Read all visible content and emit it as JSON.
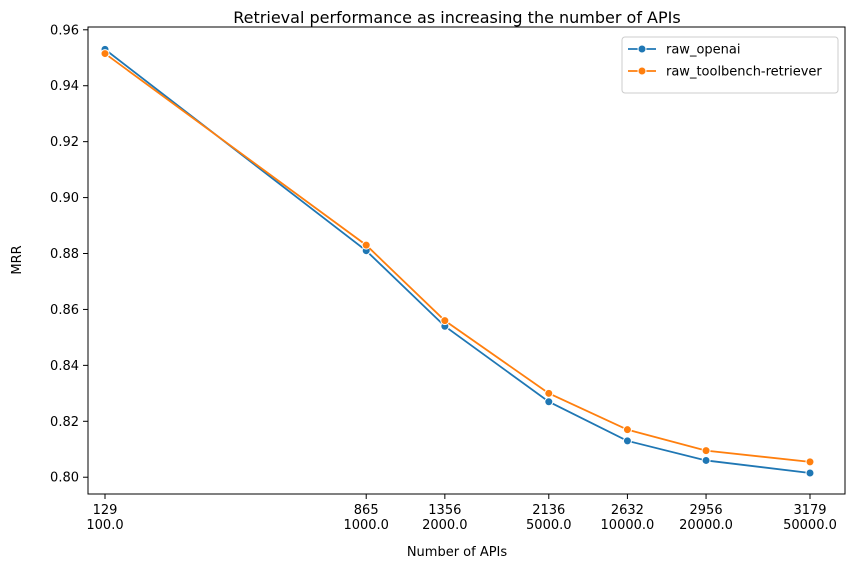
{
  "chart_data": {
    "type": "line",
    "title": "Retrieval performance as increasing the number of APIs",
    "xlabel": "Number of APIs",
    "ylabel": "MRR",
    "x": [
      100,
      1000,
      2000,
      5000,
      10000,
      20000,
      50000
    ],
    "x_tick_labels_top": [
      "129",
      "865",
      "1356",
      "2136",
      "2632",
      "2956",
      "3179"
    ],
    "x_tick_labels_bottom": [
      "100.0",
      "1000.0",
      "2000.0",
      "5000.0",
      "10000.0",
      "20000.0",
      "50000.0"
    ],
    "ylim": [
      0.794,
      0.961
    ],
    "y_ticks": [
      0.8,
      0.82,
      0.84,
      0.86,
      0.88,
      0.9,
      0.92,
      0.94,
      0.96
    ],
    "y_tick_labels": [
      "0.80",
      "0.82",
      "0.84",
      "0.86",
      "0.88",
      "0.90",
      "0.92",
      "0.94",
      "0.96"
    ],
    "grid": false,
    "legend_position": "top-right",
    "series": [
      {
        "name": "raw_openai",
        "color": "#1f77b4",
        "values": [
          0.953,
          0.881,
          0.854,
          0.827,
          0.813,
          0.806,
          0.8015
        ]
      },
      {
        "name": "raw_toolbench-retriever",
        "color": "#ff7f0e",
        "values": [
          0.9515,
          0.883,
          0.856,
          0.83,
          0.817,
          0.8095,
          0.8055
        ]
      }
    ]
  }
}
